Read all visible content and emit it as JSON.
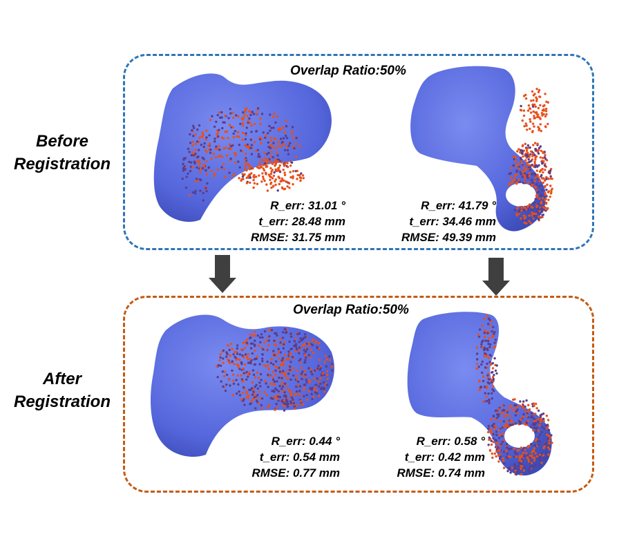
{
  "labels": {
    "before": [
      "Before",
      "Registration"
    ],
    "after": [
      "After",
      "Registration"
    ]
  },
  "panels": {
    "before": {
      "overlap": "Overlap Ratio:50%"
    },
    "after": {
      "overlap": "Overlap Ratio:50%"
    }
  },
  "metrics": {
    "before_femur": {
      "r_err": "R_err: 31.01 °",
      "t_err": "t_err: 28.48 mm",
      "rmse": "RMSE: 31.75 mm"
    },
    "before_hip": {
      "r_err": "R_err: 41.79 °",
      "t_err": "t_err: 34.46 mm",
      "rmse": "RMSE: 49.39 mm"
    },
    "after_femur": {
      "r_err": "R_err: 0.44 °",
      "t_err": "t_err: 0.54 mm",
      "rmse": "RMSE: 0.77 mm"
    },
    "after_hip": {
      "r_err": "R_err: 0.58 °",
      "t_err": "t_err: 0.42 mm",
      "rmse": "RMSE: 0.74 mm"
    }
  },
  "colors": {
    "before_border": "#2e75b6",
    "after_border": "#c55a11",
    "bone": "#5b6fe0",
    "points": "#e8501b",
    "arrow": "#3f3f3f"
  }
}
